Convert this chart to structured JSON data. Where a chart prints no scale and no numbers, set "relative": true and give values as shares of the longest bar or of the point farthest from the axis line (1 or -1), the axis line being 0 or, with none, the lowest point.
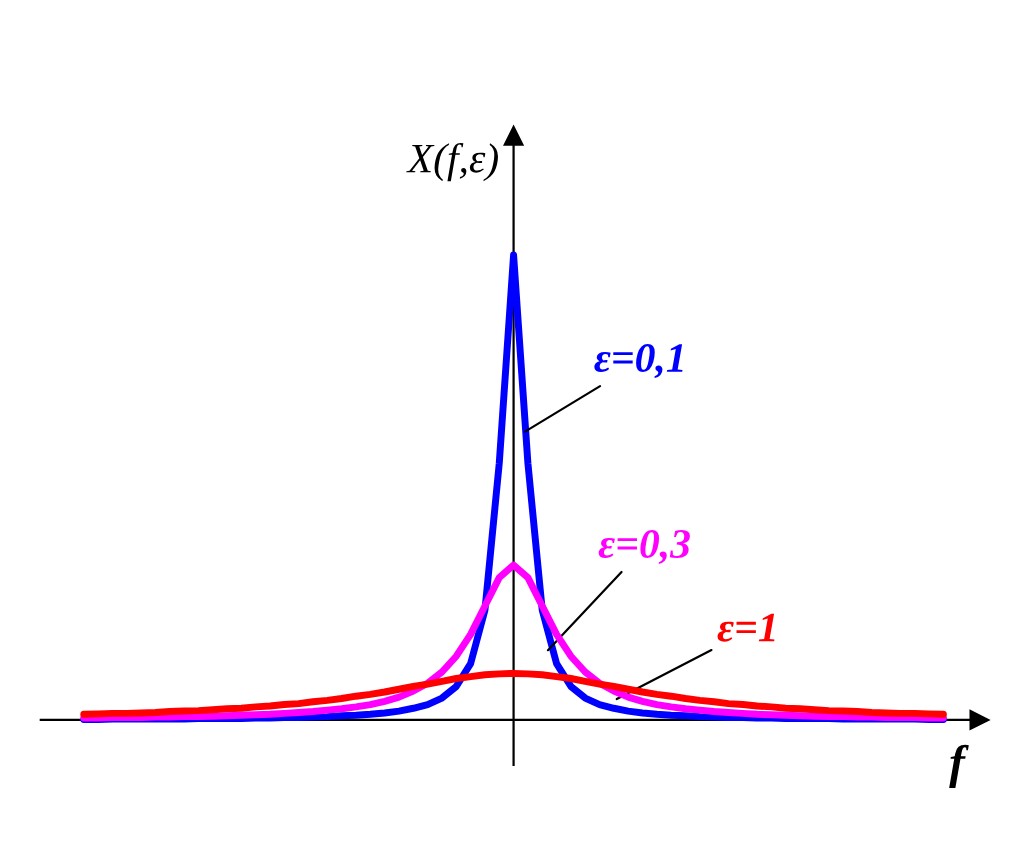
{
  "chart_data": {
    "type": "line",
    "relative": true,
    "xlabel": "f",
    "ylabel": "X(f,ε)",
    "grid": false,
    "legend": false,
    "categories": [
      null,
      null,
      null,
      null,
      null,
      null,
      null,
      null,
      null,
      null,
      null,
      null,
      null,
      null,
      null,
      null,
      null,
      null,
      null,
      null,
      null,
      null,
      null,
      null,
      null,
      null,
      null,
      null,
      null,
      null,
      null,
      null,
      null,
      null,
      null,
      null,
      null,
      null,
      null,
      null,
      null,
      null,
      null,
      null,
      null,
      null,
      null,
      null,
      null,
      null,
      null,
      null,
      null,
      null,
      null,
      null,
      null,
      null,
      null,
      null,
      null
    ],
    "series": [
      {
        "name": "ε=0,1",
        "color": "#0000ff",
        "values": [
          0.001,
          0.001,
          0.002,
          0.002,
          0.002,
          0.002,
          0.002,
          0.002,
          0.003,
          0.003,
          0.003,
          0.003,
          0.004,
          0.004,
          0.005,
          0.005,
          0.006,
          0.007,
          0.009,
          0.01,
          0.012,
          0.015,
          0.019,
          0.025,
          0.033,
          0.047,
          0.072,
          0.121,
          0.236,
          0.552,
          1,
          0.552,
          0.236,
          0.121,
          0.072,
          0.047,
          0.033,
          0.025,
          0.019,
          0.015,
          0.012,
          0.01,
          0.009,
          0.007,
          0.006,
          0.005,
          0.005,
          0.004,
          0.004,
          0.003,
          0.003,
          0.003,
          0.003,
          0.002,
          0.002,
          0.002,
          0.002,
          0.002,
          0.002,
          0.001,
          0.001
        ]
      },
      {
        "name": "ε=0,3",
        "color": "#ff00ff",
        "values": [
          0.004,
          0.004,
          0.005,
          0.005,
          0.005,
          0.006,
          0.006,
          0.007,
          0.007,
          0.008,
          0.009,
          0.01,
          0.011,
          0.012,
          0.014,
          0.016,
          0.018,
          0.021,
          0.024,
          0.028,
          0.033,
          0.04,
          0.049,
          0.062,
          0.079,
          0.103,
          0.137,
          0.184,
          0.245,
          0.306,
          0.333,
          0.306,
          0.245,
          0.184,
          0.137,
          0.103,
          0.079,
          0.062,
          0.049,
          0.04,
          0.033,
          0.028,
          0.024,
          0.021,
          0.018,
          0.016,
          0.014,
          0.012,
          0.011,
          0.01,
          0.009,
          0.008,
          0.007,
          0.007,
          0.006,
          0.006,
          0.005,
          0.005,
          0.005,
          0.004,
          0.004
        ]
      },
      {
        "name": "ε=1",
        "color": "#ff0000",
        "values": [
          0.012,
          0.013,
          0.014,
          0.014,
          0.015,
          0.016,
          0.018,
          0.019,
          0.02,
          0.022,
          0.024,
          0.025,
          0.028,
          0.03,
          0.033,
          0.035,
          0.039,
          0.042,
          0.046,
          0.051,
          0.055,
          0.06,
          0.066,
          0.072,
          0.077,
          0.083,
          0.089,
          0.093,
          0.097,
          0.099,
          0.1,
          0.099,
          0.097,
          0.093,
          0.089,
          0.083,
          0.077,
          0.072,
          0.066,
          0.06,
          0.055,
          0.051,
          0.046,
          0.042,
          0.039,
          0.035,
          0.033,
          0.03,
          0.028,
          0.025,
          0.024,
          0.022,
          0.02,
          0.019,
          0.018,
          0.016,
          0.015,
          0.014,
          0.014,
          0.013,
          0.012
        ]
      }
    ]
  }
}
